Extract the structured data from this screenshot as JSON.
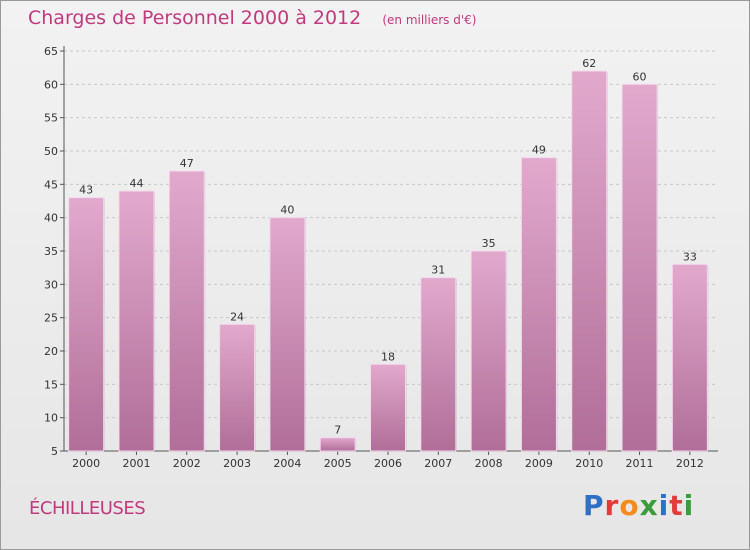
{
  "header": {
    "title": "Charges de Personnel 2000 à 2012",
    "subtitle": "(en milliers d'€)"
  },
  "footer": {
    "commune": "ÉCHILLEUSES",
    "brand": "Proxiti",
    "brand_letters": [
      {
        "ch": "P",
        "color": "#2f6fc4"
      },
      {
        "ch": "r",
        "color": "#e23b3b"
      },
      {
        "ch": "o",
        "color": "#f28c1e"
      },
      {
        "ch": "x",
        "color": "#3a9d3a"
      },
      {
        "ch": "i",
        "color": "#2f6fc4"
      },
      {
        "ch": "t",
        "color": "#e23b3b"
      },
      {
        "ch": "i",
        "color": "#3a9d3a"
      }
    ]
  },
  "chart_data": {
    "type": "bar",
    "title": "Charges de Personnel 2000 à 2012",
    "subtitle": "(en milliers d'€)",
    "categories": [
      "2000",
      "2001",
      "2002",
      "2003",
      "2004",
      "2005",
      "2006",
      "2007",
      "2008",
      "2009",
      "2010",
      "2011",
      "2012"
    ],
    "values": [
      43,
      44,
      47,
      24,
      40,
      7,
      18,
      31,
      35,
      49,
      62,
      60,
      33
    ],
    "ylim": [
      5,
      65
    ],
    "yticks": [
      5,
      10,
      15,
      20,
      25,
      30,
      35,
      40,
      45,
      50,
      55,
      60,
      65
    ],
    "grid": true,
    "bar_color_top": "#e2a9cd",
    "bar_color_bottom": "#b06e98"
  }
}
